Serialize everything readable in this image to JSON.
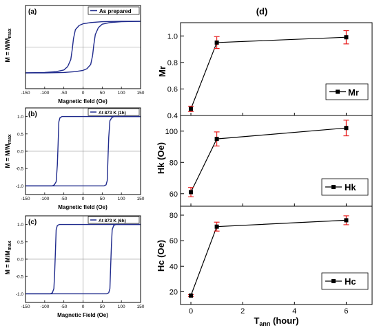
{
  "chart_data": [
    {
      "id": "a",
      "type": "line",
      "panel_label": "(a)",
      "legend": "As prepared",
      "xlabel": "Magnetic field (Oe)",
      "ylabel": "M = M/M",
      "ylabel_sub": "max",
      "xlim": [
        -150,
        150
      ],
      "ylim": [
        -1.0,
        1.0
      ],
      "xticks": [
        -150,
        -100,
        -50,
        0,
        50,
        100,
        150
      ],
      "yticks": [],
      "line_color": "#1f2a8c",
      "series": [
        {
          "values": {
            "x": [
              -150,
              -100,
              -70,
              -50,
              -40,
              -32,
              -28,
              -25,
              -20,
              -10,
              0,
              20,
              50,
              100,
              150
            ],
            "y": [
              -0.62,
              -0.61,
              -0.59,
              -0.55,
              -0.47,
              -0.3,
              -0.05,
              0.2,
              0.42,
              0.52,
              0.56,
              0.59,
              0.61,
              0.62,
              0.62
            ]
          }
        },
        {
          "values": {
            "x": [
              150,
              100,
              70,
              50,
              40,
              32,
              28,
              25,
              20,
              10,
              0,
              -20,
              -50,
              -100,
              -150
            ],
            "y": [
              0.62,
              0.61,
              0.59,
              0.55,
              0.47,
              0.3,
              0.05,
              -0.2,
              -0.42,
              -0.52,
              -0.56,
              -0.59,
              -0.61,
              -0.62,
              -0.62
            ]
          }
        }
      ]
    },
    {
      "id": "b",
      "type": "line",
      "panel_label": "(b)",
      "legend": "At 873 K (1h)",
      "xlabel": "Magnetic field (Oe)",
      "ylabel": "M = M/M",
      "ylabel_sub": "max",
      "xlim": [
        -150,
        150
      ],
      "ylim": [
        -1.25,
        1.25
      ],
      "xticks": [
        -150,
        -100,
        -50,
        0,
        50,
        100,
        150
      ],
      "yticks": [
        -1.0,
        -0.5,
        0.0,
        0.5,
        1.0
      ],
      "ytick_labels": [
        "-1.0",
        "-0.5",
        "0.0",
        "0.5",
        "1.0"
      ],
      "line_color": "#1f2a8c",
      "series": [
        {
          "values": {
            "x": [
              -150,
              -80,
              -75,
              -70,
              -67,
              -65,
              -63,
              -60,
              -55,
              0,
              150
            ],
            "y": [
              -1.0,
              -1.0,
              -0.97,
              -0.88,
              -0.4,
              0.2,
              0.85,
              0.97,
              1.0,
              1.0,
              1.0
            ]
          }
        },
        {
          "values": {
            "x": [
              150,
              80,
              75,
              70,
              67,
              65,
              63,
              60,
              55,
              0,
              -150
            ],
            "y": [
              1.0,
              1.0,
              0.97,
              0.88,
              0.4,
              -0.2,
              -0.85,
              -0.97,
              -1.0,
              -1.0,
              -1.0
            ]
          }
        }
      ]
    },
    {
      "id": "c",
      "type": "line",
      "panel_label": "(c)",
      "legend": "At 873 K (6h)",
      "xlabel": "Magnetic Field (Oe)",
      "ylabel": "M = M/M",
      "ylabel_sub": "max",
      "xlim": [
        -150,
        150
      ],
      "ylim": [
        -1.25,
        1.25
      ],
      "xticks": [
        -150,
        -100,
        -50,
        0,
        50,
        100,
        150
      ],
      "yticks": [
        -1.0,
        -0.5,
        0.0,
        0.5,
        1.0
      ],
      "ytick_labels": [
        "-1.0",
        "-0.5",
        "0.0",
        "0.5",
        "1.0"
      ],
      "line_color": "#1f2a8c",
      "series": [
        {
          "values": {
            "x": [
              -150,
              -85,
              -80,
              -76,
              -74,
              -72,
              -70,
              -67,
              -62,
              0,
              150
            ],
            "y": [
              -1.0,
              -1.0,
              -0.97,
              -0.85,
              -0.4,
              0.2,
              0.85,
              0.97,
              1.0,
              1.0,
              1.0
            ]
          }
        },
        {
          "values": {
            "x": [
              150,
              85,
              80,
              76,
              74,
              72,
              70,
              67,
              62,
              0,
              -150
            ],
            "y": [
              1.0,
              1.0,
              0.97,
              0.85,
              0.4,
              -0.2,
              -0.85,
              -0.97,
              -1.0,
              -1.0,
              -1.0
            ]
          }
        }
      ]
    },
    {
      "id": "d_mr",
      "type": "scatter",
      "title": "(d)",
      "ylabel": "Mr",
      "legend": "Mr",
      "xlim": [
        -0.4,
        7.0
      ],
      "ylim": [
        0.4,
        1.1
      ],
      "yticks": [
        0.4,
        0.6,
        0.8,
        1.0
      ],
      "ytick_labels": [
        "0.4",
        "0.6",
        "0.8",
        "1.0"
      ],
      "x": [
        0,
        1,
        6
      ],
      "y": [
        0.45,
        0.95,
        0.99
      ],
      "yerr": [
        0.02,
        0.045,
        0.05
      ],
      "error_color": "#e82020"
    },
    {
      "id": "d_hk",
      "type": "scatter",
      "ylabel": "Hk (Oe)",
      "legend": "Hk",
      "xlim": [
        -0.4,
        7.0
      ],
      "ylim": [
        52,
        110
      ],
      "yticks": [
        60,
        80,
        100
      ],
      "ytick_labels": [
        "60",
        "80",
        "100"
      ],
      "x": [
        0,
        1,
        6
      ],
      "y": [
        61,
        95,
        102
      ],
      "yerr": [
        3,
        4.5,
        5
      ],
      "error_color": "#e82020"
    },
    {
      "id": "d_hc",
      "type": "scatter",
      "ylabel": "Hc (Oe)",
      "legend": "Hc",
      "xlabel": "T",
      "xlabel_sub": "ann",
      "xlabel_suffix": " (hour)",
      "xlim": [
        -0.4,
        7.0
      ],
      "ylim": [
        10,
        87
      ],
      "xticks": [
        0,
        2,
        4,
        6
      ],
      "yticks": [
        20,
        40,
        60,
        80
      ],
      "ytick_labels": [
        "20",
        "40",
        "60",
        "80"
      ],
      "x": [
        0,
        1,
        6
      ],
      "y": [
        17,
        71,
        76
      ],
      "yerr": [
        0.8,
        3.5,
        3.5
      ],
      "error_color": "#e82020"
    }
  ]
}
